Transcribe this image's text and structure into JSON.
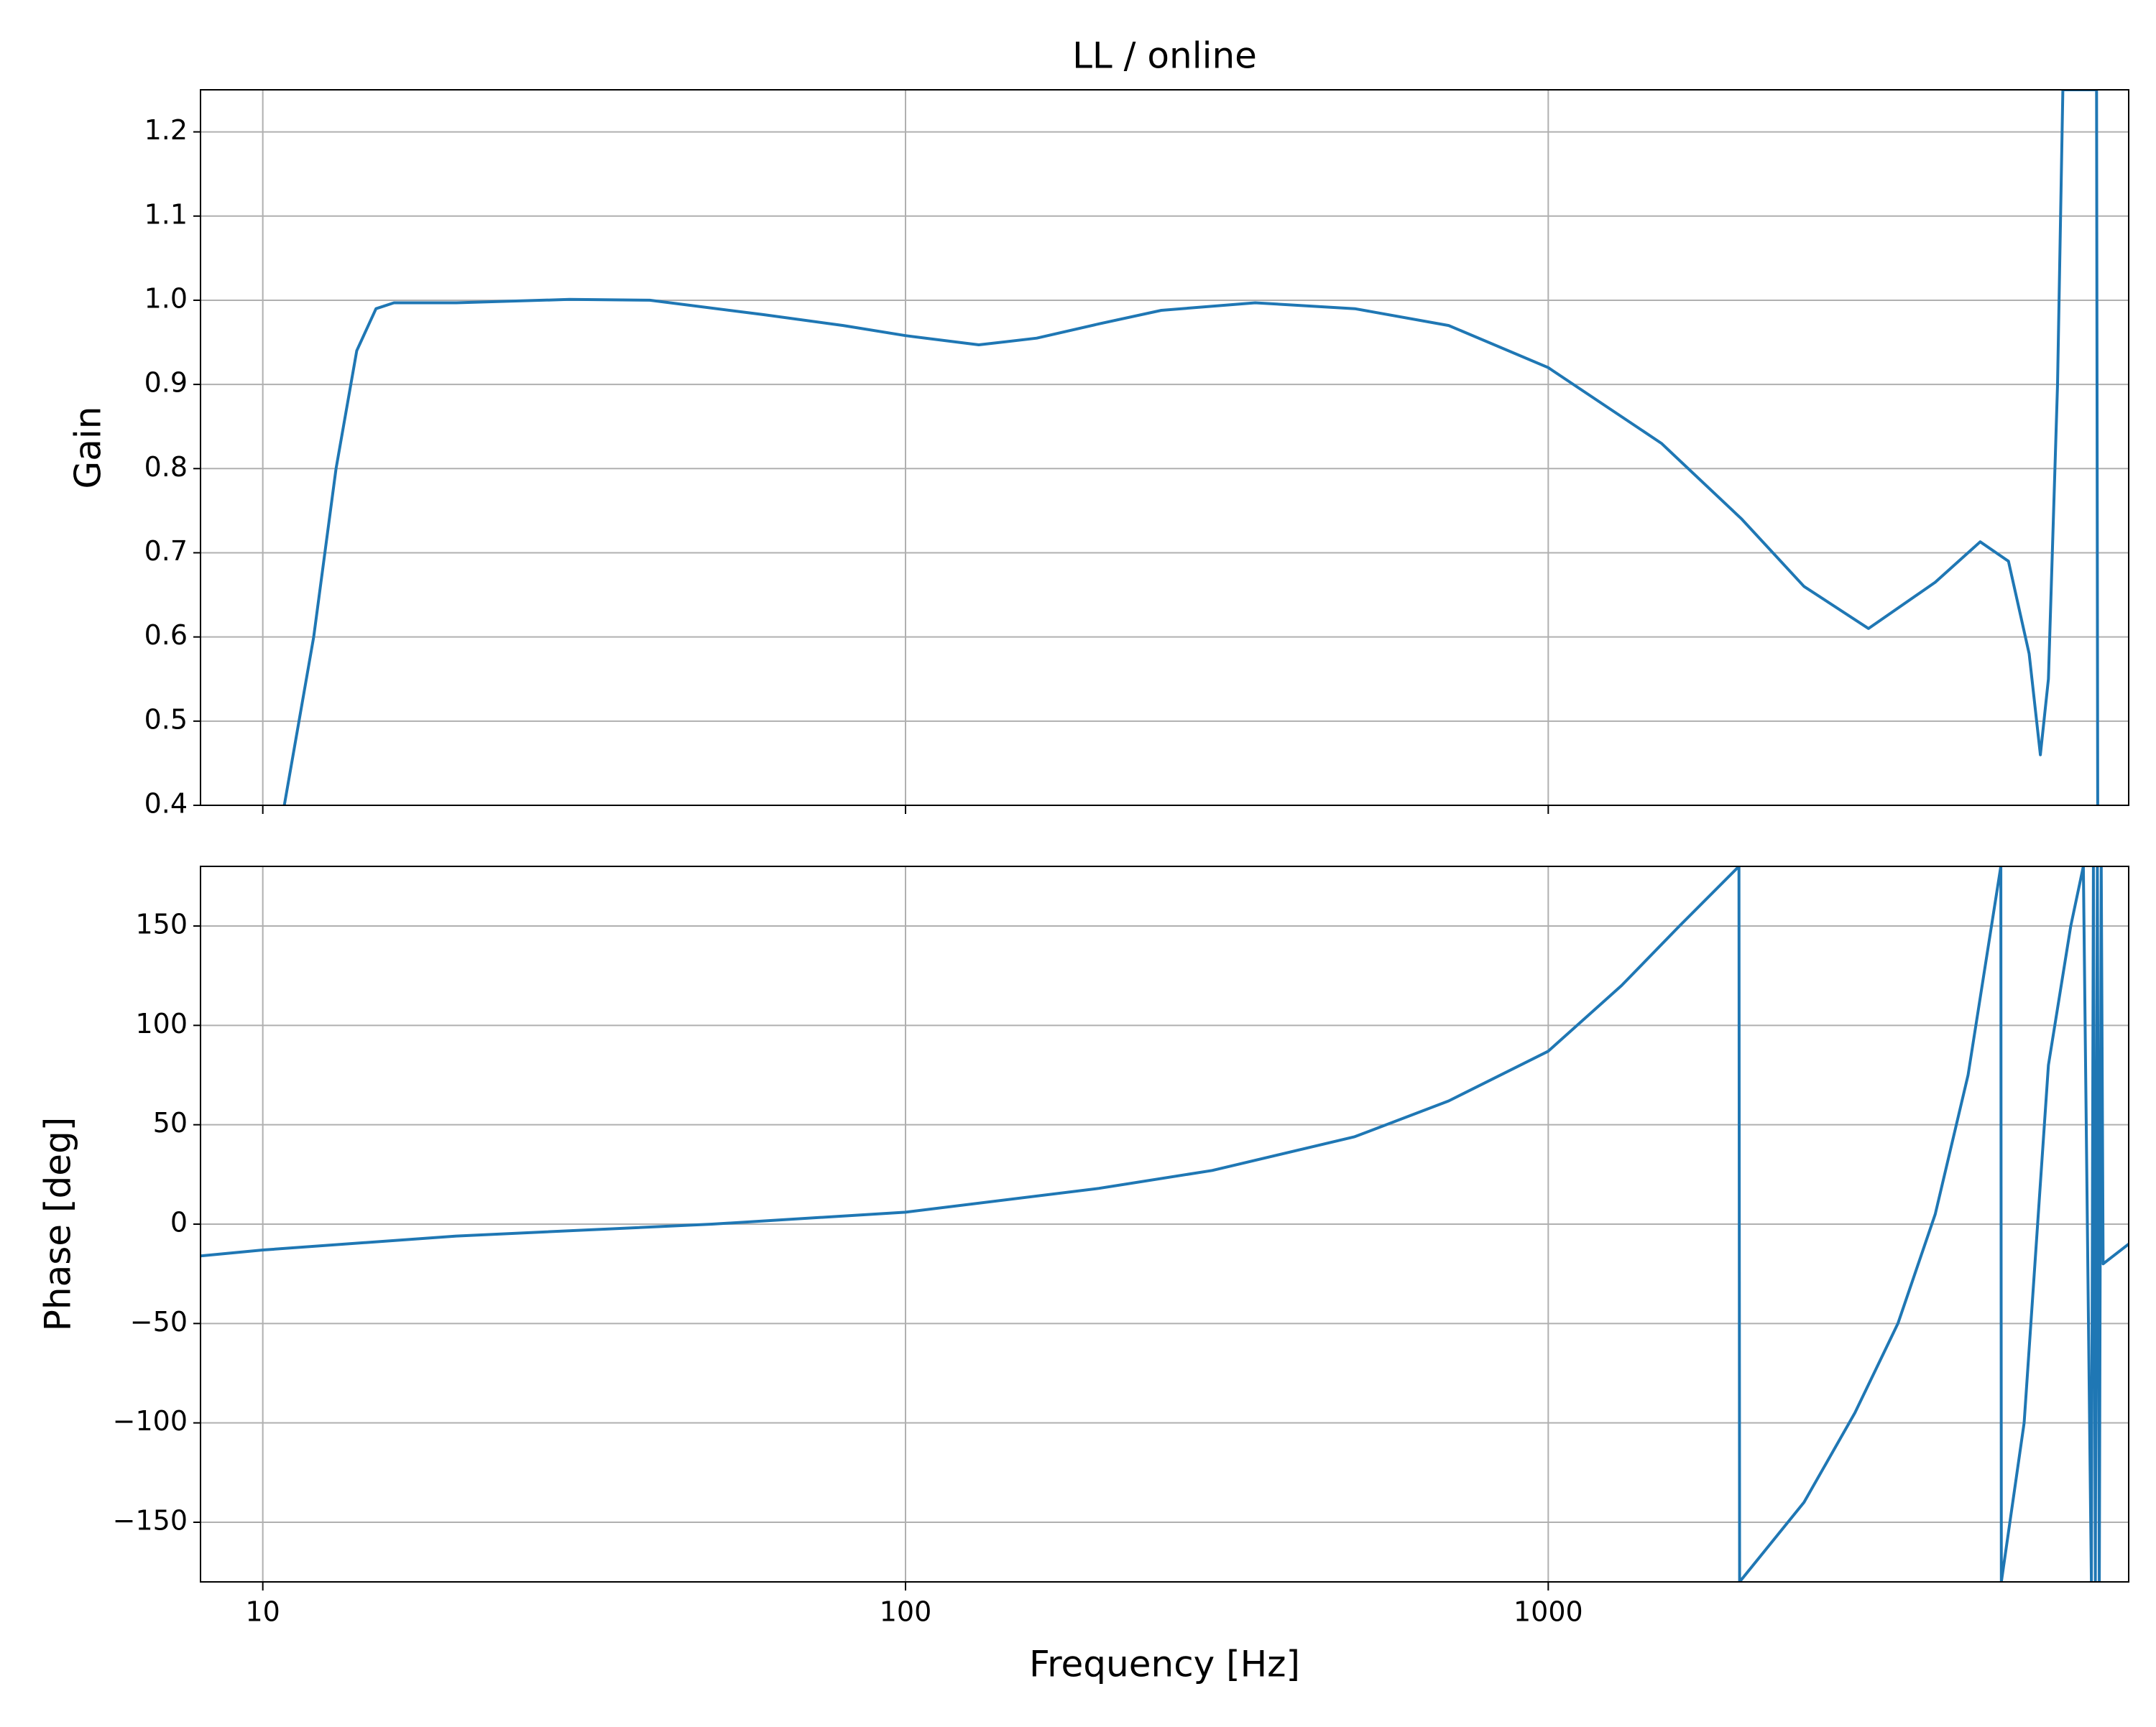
{
  "chart_data": [
    {
      "type": "line",
      "title": "LL / online",
      "y_label": "Gain",
      "xscale": "log",
      "grid": true,
      "color": "#1f77b4",
      "show_xtick_labels": false,
      "xlim": [
        8,
        8000
      ],
      "xticks": [
        10,
        100,
        1000
      ],
      "ylim": [
        0.4,
        1.25
      ],
      "yticks": [
        0.4,
        0.5,
        0.6,
        0.7,
        0.8,
        0.9,
        {
          "value": 1,
          "label": "1.0"
        },
        1.1,
        1.2
      ],
      "x": [
        10.8,
        12,
        13,
        14,
        15,
        16,
        20,
        30,
        40,
        60,
        80,
        100,
        130,
        160,
        200,
        250,
        350,
        500,
        700,
        1000,
        1500,
        2000,
        2500,
        3150,
        4000,
        4700,
        5200,
        5600,
        5830,
        6000,
        6200,
        6320,
        7130,
        7160
      ],
      "values": [
        0.4,
        0.6,
        0.8,
        0.94,
        0.99,
        0.997,
        0.997,
        1.001,
        1.0,
        0.983,
        0.97,
        0.958,
        0.947,
        0.955,
        0.972,
        0.988,
        0.997,
        0.99,
        0.97,
        0.92,
        0.83,
        0.74,
        0.66,
        0.61,
        0.665,
        0.713,
        0.69,
        0.58,
        0.46,
        0.55,
        0.9,
        1.25,
        1.25,
        0.4
      ]
    },
    {
      "type": "line",
      "x_label": "Frequency [Hz]",
      "y_label": "Phase [deg]",
      "xscale": "log",
      "grid": true,
      "color": "#1f77b4",
      "show_xtick_labels": true,
      "xlim": [
        8,
        8000
      ],
      "xticks": [
        10,
        100,
        1000
      ],
      "ylim": [
        -180,
        180
      ],
      "yticks": [
        {
          "value": -150,
          "label": "−150"
        },
        {
          "value": -100,
          "label": "−100"
        },
        {
          "value": -50,
          "label": "−50"
        },
        0,
        50,
        100,
        150
      ],
      "x": [
        8,
        10,
        20,
        50,
        100,
        200,
        300,
        500,
        700,
        1000,
        1300,
        1600,
        1980,
        1985,
        2500,
        3000,
        3500,
        4000,
        4500,
        5060,
        5070,
        5500,
        6000,
        6500,
        6800,
        7000,
        7050,
        7100,
        7150,
        7200,
        7250,
        7300,
        8000
      ],
      "values": [
        -16,
        -13,
        -6,
        0,
        6,
        18,
        27,
        44,
        62,
        87,
        120,
        150,
        180,
        -180,
        -140,
        -95,
        -50,
        5,
        75,
        180,
        -180,
        -100,
        80,
        150,
        180,
        -180,
        180,
        -180,
        180,
        -180,
        180,
        -20,
        -10
      ]
    }
  ]
}
